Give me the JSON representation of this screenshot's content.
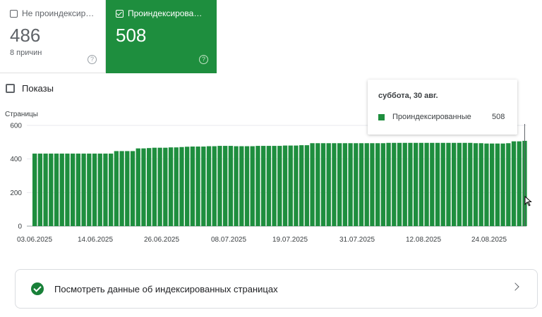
{
  "tabs": {
    "not_indexed": {
      "label": "Не проиндексир…",
      "count": "486",
      "sub": "8 причин",
      "checked": false
    },
    "indexed": {
      "label": "Проиндексирова…",
      "count": "508",
      "checked": true
    }
  },
  "impressions": {
    "label": "Показы",
    "checked": false
  },
  "chart_data": {
    "type": "bar",
    "ylabel": "Страницы",
    "ylim": [
      0,
      600
    ],
    "yticks": [
      "0",
      "200",
      "400",
      "600"
    ],
    "xticks": [
      "03.06.2025",
      "14.06.2025",
      "26.06.2025",
      "08.07.2025",
      "19.07.2025",
      "31.07.2025",
      "12.08.2025",
      "24.08.2025"
    ],
    "x_start": "03.06.2025",
    "x_end": "30.08.2025",
    "series": [
      {
        "name": "Проиндексированные",
        "color": "#1e8e3e",
        "values": [
          432,
          432,
          432,
          432,
          432,
          432,
          432,
          432,
          432,
          432,
          432,
          432,
          432,
          432,
          432,
          447,
          447,
          447,
          447,
          463,
          463,
          465,
          467,
          467,
          467,
          469,
          469,
          471,
          473,
          474,
          474,
          474,
          476,
          476,
          478,
          478,
          478,
          476,
          476,
          476,
          476,
          478,
          478,
          478,
          478,
          478,
          480,
          480,
          480,
          482,
          482,
          494,
          494,
          494,
          494,
          494,
          494,
          494,
          494,
          494,
          494,
          494,
          494,
          494,
          494,
          496,
          496,
          496,
          496,
          496,
          496,
          496,
          496,
          496,
          496,
          496,
          496,
          496,
          496,
          496,
          496,
          494,
          494,
          492,
          492,
          492,
          492,
          494,
          505,
          505,
          508
        ]
      }
    ]
  },
  "tooltip": {
    "date": "суббота, 30 авг.",
    "series_name": "Проиндексированные",
    "value": "508"
  },
  "link_card": {
    "label": "Посмотреть данные об индексированных страницах"
  }
}
